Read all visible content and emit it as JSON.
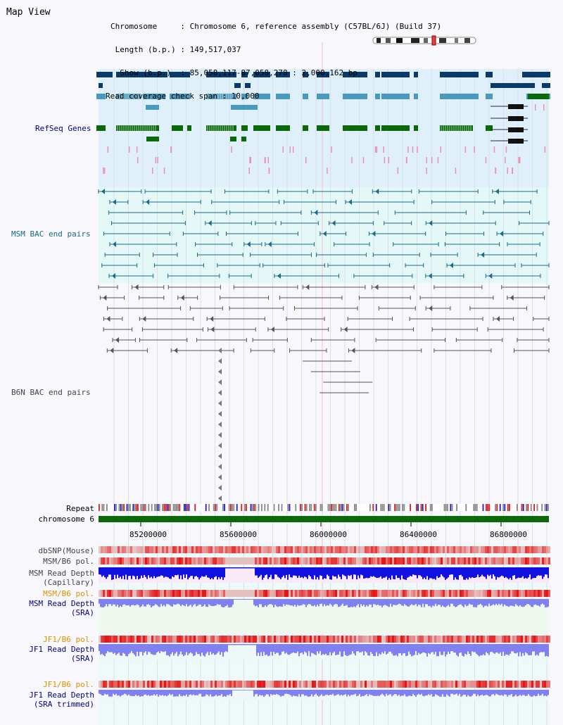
{
  "page": {
    "title": "Map View"
  },
  "header": {
    "lines": [
      "Chromosome     : Chromosome 6, reference assembly (C57BL/6J) (Build 37)",
      " Length (b.p.) : 149,517,037",
      "  Show (b.p.)  : 85,058,117-87,058,278 : 2,000,162 bp",
      "Read coverage check span : 10,000"
    ]
  },
  "tracks": {
    "refseq": "RefSeq Genes",
    "msm_bac": "MSM BAC end pairs",
    "b6n_bac": "B6N BAC end pairs",
    "repeat": "Repeat",
    "chromosome": "chromosome 6",
    "dbsnp": "dbSNP(Mouse)",
    "msm_b6_pol": "MSM/B6 pol.",
    "msm_depth_cap_1": "MSM Read Depth",
    "msm_depth_cap_2": "(Capillary)",
    "msm_b6_pol_2": "MSM/B6 pol.",
    "msm_depth_sra_1": "MSM Read Depth",
    "msm_depth_sra_2": "(SRA)",
    "jf1_b6_pol": "JF1/B6 pol.",
    "jf1_depth_sra_1": "JF1 Read Depth",
    "jf1_depth_sra_2": "(SRA)",
    "jf1_b6_pol_2": "JF1/B6 pol.",
    "jf1_depth_trim_1": "JF1 Read Depth",
    "jf1_depth_trim_2": "(SRA trimmed)"
  },
  "axis": {
    "ticks": [
      "85200000",
      "85600000",
      "86000000",
      "86400000",
      "86800000"
    ]
  },
  "colors": {
    "refseq_bg": "#dff0fa",
    "msm_bg": "#e4f8f8",
    "gene_navy": "#0a3a6a",
    "gene_teal": "#4a9ac0",
    "gene_green": "#0a6a0a",
    "chromosome_bar": "#0a6a0a",
    "msm_pair": "#1a6a8a",
    "b6n_pair": "#555555",
    "read_depth_cap": "#1010e0",
    "read_depth_sra": "#8080f0",
    "polymorphism": "#e02020"
  }
}
